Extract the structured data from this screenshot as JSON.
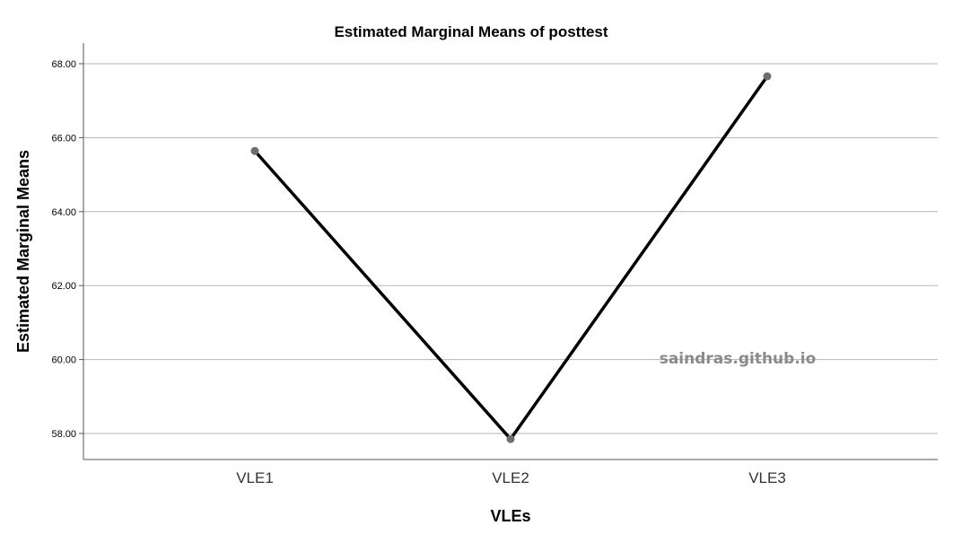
{
  "chart_data": {
    "type": "line",
    "title": "Estimated Marginal Means of posttest",
    "xlabel": "VLEs",
    "ylabel": "Estimated Marginal Means",
    "categories": [
      "VLE1",
      "VLE2",
      "VLE3"
    ],
    "values": [
      65.64,
      57.85,
      67.66
    ],
    "y_ticks": [
      "58.00",
      "60.00",
      "62.00",
      "64.00",
      "66.00",
      "68.00"
    ],
    "ylim": [
      57.3,
      68.6
    ],
    "grid": "horizontal",
    "legend": "none",
    "line_color": "#000000",
    "marker_color": "#6e6e6e",
    "grid_color": "#b5b5b5"
  },
  "watermark": "saindras.github.io"
}
